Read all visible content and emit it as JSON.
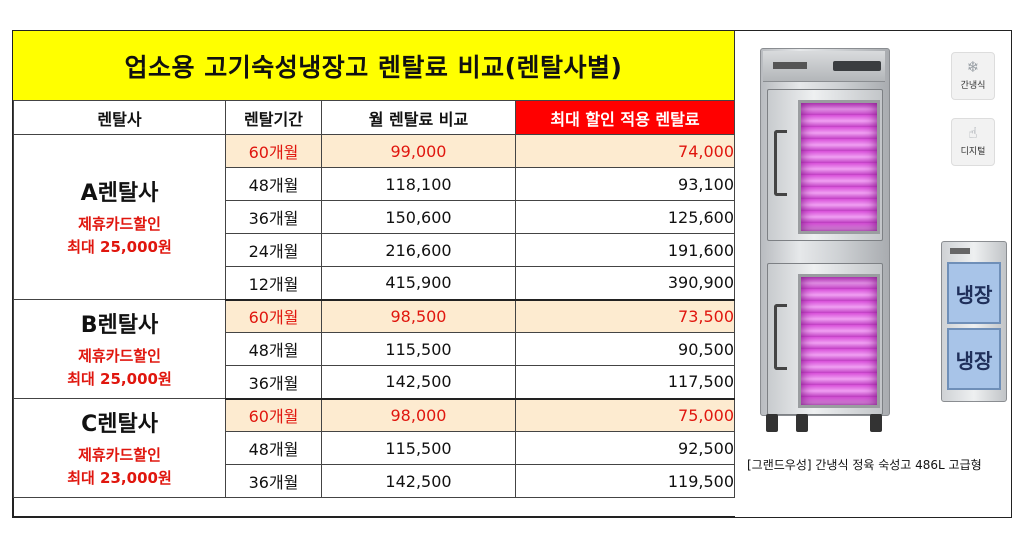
{
  "title": "업소용 고기숙성냉장고 렌탈료 비교(렌탈사별)",
  "table": {
    "headers": {
      "company": "렌탈사",
      "period": "렌탈기간",
      "monthly": "월 렌탈료 비교",
      "discounted": "최대 할인 적용 렌탈료"
    },
    "highlight_color": "#ff0000",
    "promo_row_color": "#fdebd0",
    "companies": [
      {
        "name": "A렌탈사",
        "note1": "제휴카드할인",
        "note2": "최대 25,000원",
        "rows": [
          {
            "period": "60개월",
            "monthly": "99,000",
            "discounted": "74,000"
          },
          {
            "period": "48개월",
            "monthly": "118,100",
            "discounted": "93,100"
          },
          {
            "period": "36개월",
            "monthly": "150,600",
            "discounted": "125,600"
          },
          {
            "period": "24개월",
            "monthly": "216,600",
            "discounted": "191,600"
          },
          {
            "period": "12개월",
            "monthly": "415,900",
            "discounted": "390,900"
          }
        ]
      },
      {
        "name": "B렌탈사",
        "note1": "제휴카드할인",
        "note2": "최대 25,000원",
        "rows": [
          {
            "period": "60개월",
            "monthly": "98,500",
            "discounted": "73,500"
          },
          {
            "period": "48개월",
            "monthly": "115,500",
            "discounted": "90,500"
          },
          {
            "period": "36개월",
            "monthly": "142,500",
            "discounted": "117,500"
          }
        ]
      },
      {
        "name": "C렌탈사",
        "note1": "제휴카드할인",
        "note2": "최대 23,000원",
        "rows": [
          {
            "period": "60개월",
            "monthly": "98,000",
            "discounted": "75,000"
          },
          {
            "period": "48개월",
            "monthly": "115,500",
            "discounted": "92,500"
          },
          {
            "period": "36개월",
            "monthly": "142,500",
            "discounted": "119,500"
          }
        ]
      }
    ]
  },
  "product": {
    "features": [
      {
        "icon": "snowflake-icon",
        "label": "간냉식"
      },
      {
        "icon": "touch-panel-icon",
        "label": "디지털"
      }
    ],
    "zones": [
      "냉장",
      "냉장"
    ],
    "caption": "[그랜드우성] 간냉식 정육 숙성고 486L 고급형"
  }
}
